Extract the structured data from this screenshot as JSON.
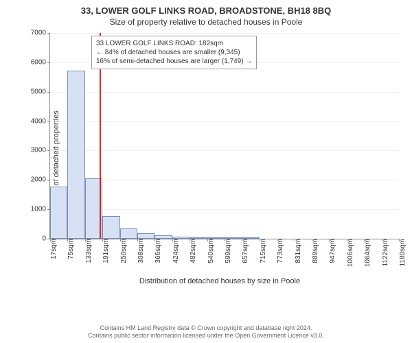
{
  "title_main": "33, LOWER GOLF LINKS ROAD, BROADSTONE, BH18 8BQ",
  "title_sub": "Size of property relative to detached houses in Poole",
  "ylabel": "Number of detached properties",
  "xlabel": "Distribution of detached houses by size in Poole",
  "annotation": {
    "line1": "33 LOWER GOLF LINKS ROAD: 182sqm",
    "line2": "← 84% of detached houses are smaller (9,345)",
    "line3": "16% of semi-detached houses are larger (1,749) →"
  },
  "footer": {
    "line1": "Contains HM Land Registry data © Crown copyright and database right 2024.",
    "line2": "Contains public sector information licensed under the Open Government Licence v3.0."
  },
  "chart": {
    "type": "histogram",
    "ylim": [
      0,
      7000
    ],
    "ytick_step": 1000,
    "bar_fill": "#d6e1f3",
    "bar_stroke": "#7a8fb8",
    "marker_color": "#d62728",
    "marker_x": 182,
    "grid_color": "#eeeeee",
    "background_color": "#ffffff",
    "xtick_labels": [
      "17sqm",
      "75sqm",
      "133sqm",
      "191sqm",
      "250sqm",
      "308sqm",
      "366sqm",
      "424sqm",
      "482sqm",
      "540sqm",
      "599sqm",
      "657sqm",
      "715sqm",
      "773sqm",
      "831sqm",
      "889sqm",
      "947sqm",
      "1006sqm",
      "1064sqm",
      "1122sqm",
      "1180sqm"
    ],
    "bars": {
      "x_start": 17,
      "x_step": 58,
      "values": [
        1780,
        5720,
        2050,
        780,
        360,
        180,
        120,
        78,
        58,
        56,
        46,
        38,
        0,
        0,
        0,
        0,
        0,
        0,
        0,
        0
      ]
    }
  }
}
